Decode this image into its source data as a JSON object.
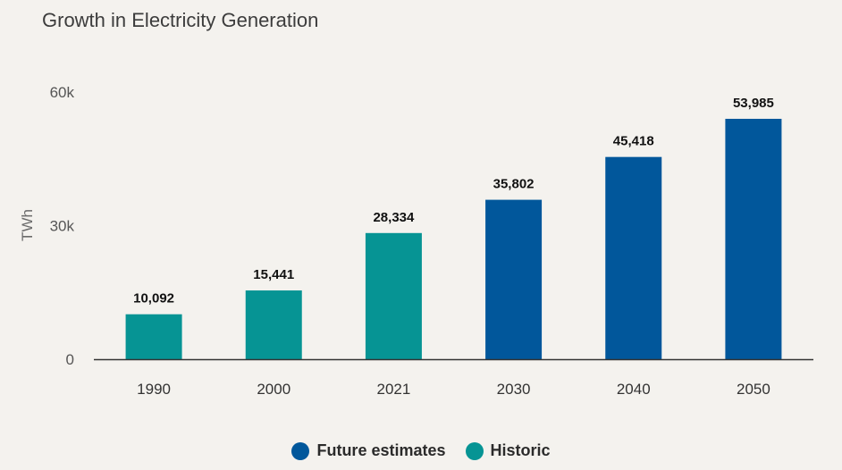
{
  "chart_data": {
    "type": "bar",
    "title": "Growth in Electricity Generation",
    "ylabel": "TWh",
    "xlabel": "",
    "ylim": [
      0,
      60000
    ],
    "yticks": [
      {
        "value": 0,
        "label": "0"
      },
      {
        "value": 30000,
        "label": "30k"
      },
      {
        "value": 60000,
        "label": "60k"
      }
    ],
    "categories": [
      "1990",
      "2000",
      "2021",
      "2030",
      "2040",
      "2050"
    ],
    "values": [
      10092,
      15441,
      28334,
      35802,
      45418,
      53985
    ],
    "value_labels": [
      "10,092",
      "15,441",
      "28,334",
      "35,802",
      "45,418",
      "53,985"
    ],
    "bar_series": [
      "Historic",
      "Historic",
      "Historic",
      "Future estimates",
      "Future estimates",
      "Future estimates"
    ],
    "series": [
      {
        "name": "Future estimates",
        "color": "#01579b"
      },
      {
        "name": "Historic",
        "color": "#069494"
      }
    ],
    "grid": false,
    "legend_position": "bottom"
  }
}
